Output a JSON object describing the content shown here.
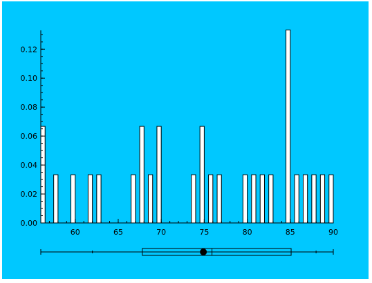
{
  "chart_data": {
    "type": "bar",
    "subtype": "histogram-with-boxplot",
    "xlim": [
      56,
      90
    ],
    "ylim": [
      0,
      0.133
    ],
    "xticks": [
      "60",
      "65",
      "70",
      "75",
      "80",
      "85",
      "90"
    ],
    "yticks": [
      "0.00",
      "0.02",
      "0.04",
      "0.06",
      "0.08",
      "0.10",
      "0.12"
    ],
    "bars": [
      {
        "x": 56.0,
        "value": 0.0667
      },
      {
        "x": 57.5,
        "value": 0.0333
      },
      {
        "x": 59.5,
        "value": 0.0333
      },
      {
        "x": 61.5,
        "value": 0.0333
      },
      {
        "x": 62.5,
        "value": 0.0333
      },
      {
        "x": 66.5,
        "value": 0.0333
      },
      {
        "x": 67.5,
        "value": 0.0667
      },
      {
        "x": 68.5,
        "value": 0.0333
      },
      {
        "x": 69.5,
        "value": 0.0667
      },
      {
        "x": 73.5,
        "value": 0.0333
      },
      {
        "x": 74.5,
        "value": 0.0667
      },
      {
        "x": 75.5,
        "value": 0.0333
      },
      {
        "x": 76.5,
        "value": 0.0333
      },
      {
        "x": 79.5,
        "value": 0.0333
      },
      {
        "x": 80.5,
        "value": 0.0333
      },
      {
        "x": 81.5,
        "value": 0.0333
      },
      {
        "x": 82.5,
        "value": 0.0333
      },
      {
        "x": 84.5,
        "value": 0.1333
      },
      {
        "x": 85.5,
        "value": 0.0333
      },
      {
        "x": 86.5,
        "value": 0.0333
      },
      {
        "x": 87.5,
        "value": 0.0333
      },
      {
        "x": 88.5,
        "value": 0.0333
      },
      {
        "x": 89.5,
        "value": 0.0333
      }
    ],
    "boxplot": {
      "min": 56.0,
      "q1": 67.8,
      "median": 75.9,
      "mean": 74.9,
      "q3": 85.1,
      "max": 90.0,
      "inner_ticks": [
        62.0,
        88.0
      ]
    },
    "background_color": "#00c8ff",
    "bar_fill": "#ffffff",
    "stroke_color": "#000000",
    "grid": false,
    "legend": "none"
  }
}
